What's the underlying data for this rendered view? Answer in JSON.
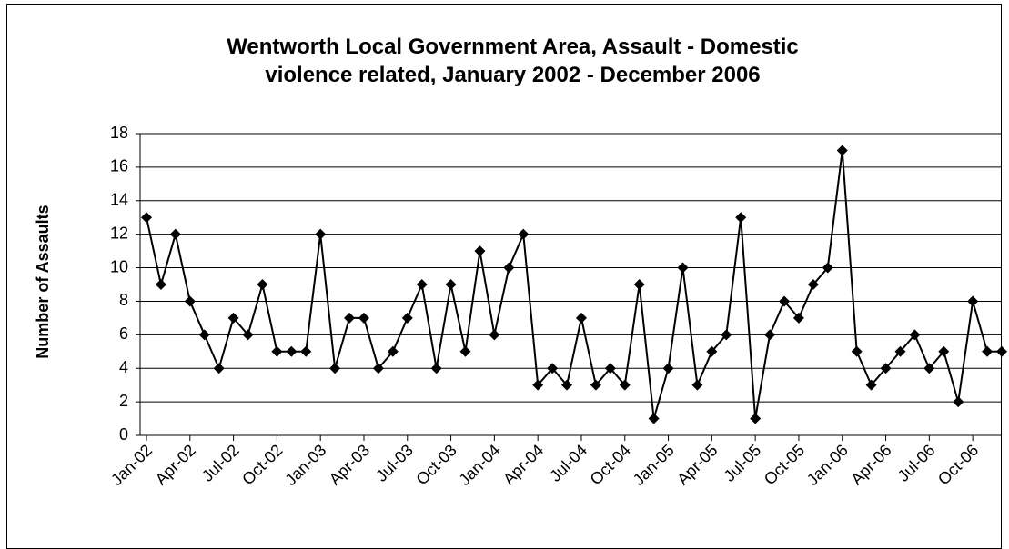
{
  "chart_data": {
    "type": "line",
    "title_lines": [
      "Wentworth Local Government Area, Assault - Domestic",
      "violence related, January 2002 - December 2006"
    ],
    "xlabel": "",
    "ylabel": "Number of Assaults",
    "ylim": [
      0,
      18
    ],
    "yticks": [
      0,
      2,
      4,
      6,
      8,
      10,
      12,
      14,
      16,
      18
    ],
    "grid": true,
    "marker": "diamond",
    "colors": {
      "line": "#000000",
      "marker": "#000000",
      "grid": "#000000"
    },
    "x": [
      "Jan-02",
      "Feb-02",
      "Mar-02",
      "Apr-02",
      "May-02",
      "Jun-02",
      "Jul-02",
      "Aug-02",
      "Sep-02",
      "Oct-02",
      "Nov-02",
      "Dec-02",
      "Jan-03",
      "Feb-03",
      "Mar-03",
      "Apr-03",
      "May-03",
      "Jun-03",
      "Jul-03",
      "Aug-03",
      "Sep-03",
      "Oct-03",
      "Nov-03",
      "Dec-03",
      "Jan-04",
      "Feb-04",
      "Mar-04",
      "Apr-04",
      "May-04",
      "Jun-04",
      "Jul-04",
      "Aug-04",
      "Sep-04",
      "Oct-04",
      "Nov-04",
      "Dec-04",
      "Jan-05",
      "Feb-05",
      "Mar-05",
      "Apr-05",
      "May-05",
      "Jun-05",
      "Jul-05",
      "Aug-05",
      "Sep-05",
      "Oct-05",
      "Nov-05",
      "Dec-05",
      "Jan-06",
      "Feb-06",
      "Mar-06",
      "Apr-06",
      "May-06",
      "Jun-06",
      "Jul-06",
      "Aug-06",
      "Sep-06",
      "Oct-06",
      "Nov-06",
      "Dec-06"
    ],
    "x_tick_labels": [
      "Jan-02",
      "Apr-02",
      "Jul-02",
      "Oct-02",
      "Jan-03",
      "Apr-03",
      "Jul-03",
      "Oct-03",
      "Jan-04",
      "Apr-04",
      "Jul-04",
      "Oct-04",
      "Jan-05",
      "Apr-05",
      "Jul-05",
      "Oct-05",
      "Jan-06",
      "Apr-06",
      "Jul-06",
      "Oct-06"
    ],
    "values": [
      13,
      9,
      12,
      8,
      6,
      4,
      7,
      6,
      9,
      5,
      5,
      5,
      12,
      4,
      7,
      7,
      4,
      5,
      7,
      9,
      4,
      9,
      5,
      11,
      6,
      10,
      12,
      3,
      4,
      3,
      7,
      3,
      4,
      3,
      9,
      1,
      4,
      10,
      3,
      5,
      6,
      13,
      1,
      6,
      8,
      7,
      9,
      10,
      17,
      5,
      3,
      4,
      5,
      6,
      4,
      5,
      2,
      8,
      5,
      5
    ]
  }
}
